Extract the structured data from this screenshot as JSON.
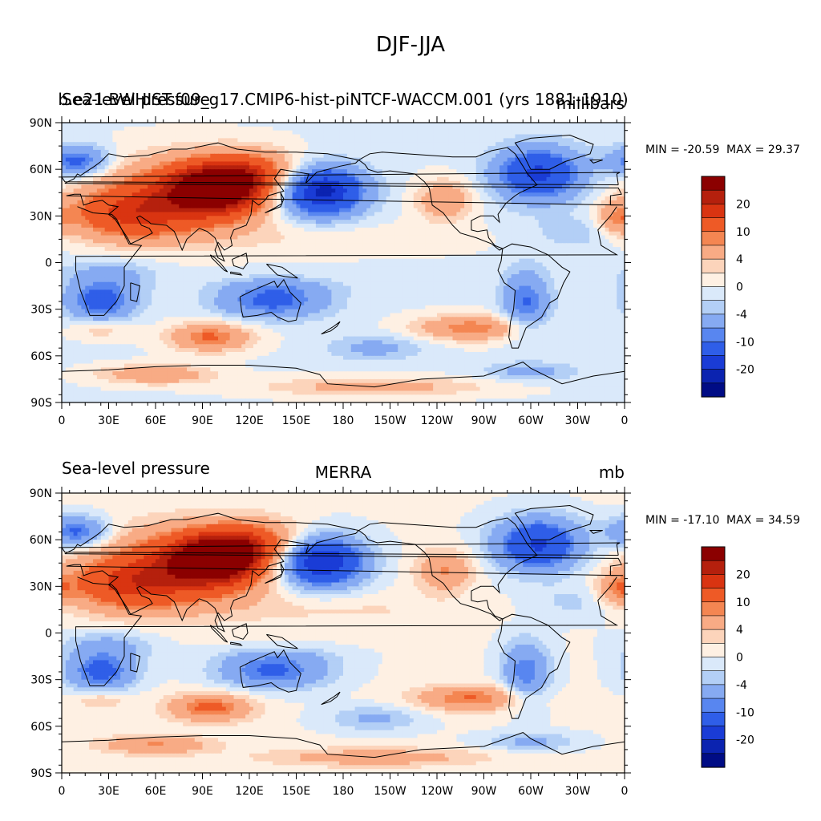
{
  "chart_data": {
    "type": "heatmap",
    "title": "DJF-JJA",
    "panels": [
      {
        "left_string": "Sea-level pressure",
        "center_string": "b.e21.BWHIST.f09_g17.CMIP6-hist-piNTCF-WACCM.001 (yrs 1881-1910)",
        "right_string": "millibars",
        "min_label": "MIN = -20.59",
        "max_label": "MAX =  29.37",
        "min": -20.59,
        "max": 29.37,
        "model_offset": -1
      },
      {
        "left_string": "Sea-level pressure",
        "center_string": "MERRA",
        "right_string": "mb",
        "min_label": "MIN = -17.10",
        "max_label": "MAX =  34.59",
        "min": -17.1,
        "max": 34.59,
        "model_offset": 1
      }
    ],
    "x_ticks": [
      "0",
      "30E",
      "60E",
      "90E",
      "120E",
      "150E",
      "180",
      "150W",
      "120W",
      "90W",
      "60W",
      "30W",
      "0"
    ],
    "y_ticks": [
      "90N",
      "60N",
      "30N",
      "0",
      "30S",
      "60S",
      "90S"
    ],
    "xlim": [
      0,
      360
    ],
    "ylim": [
      -90,
      90
    ],
    "colorbar": {
      "levels": [
        -24,
        -20,
        -16,
        -10,
        -8,
        -4,
        -2,
        0,
        2,
        4,
        8,
        10,
        16,
        20,
        24
      ],
      "labels": [
        "20",
        "10",
        "4",
        "0",
        "-4",
        "-10",
        "-20"
      ],
      "colors": [
        "#8b0000",
        "#b5200d",
        "#d93411",
        "#ee5a26",
        "#f48652",
        "#f8ab85",
        "#fcd4bb",
        "#fef0e3",
        "#dae9fa",
        "#b3cff6",
        "#86aaf2",
        "#5886f0",
        "#2f5ee8",
        "#1a3cd6",
        "#0b23b0",
        "#000c85"
      ]
    },
    "features": [
      {
        "lon": 100,
        "lat": 48,
        "a": 30,
        "b": 16,
        "v": 24
      },
      {
        "lon": 75,
        "lat": 42,
        "a": 55,
        "b": 24,
        "v": 14
      },
      {
        "lon": 40,
        "lat": 30,
        "a": 38,
        "b": 16,
        "v": 11
      },
      {
        "lon": 125,
        "lat": 58,
        "a": 32,
        "b": 14,
        "v": 10
      },
      {
        "lon": 165,
        "lat": 46,
        "a": 28,
        "b": 16,
        "v": -23
      },
      {
        "lon": 305,
        "lat": 57,
        "a": 28,
        "b": 17,
        "v": -17
      },
      {
        "lon": 10,
        "lat": 65,
        "a": 20,
        "b": 10,
        "v": -12
      },
      {
        "lon": 245,
        "lat": 40,
        "a": 18,
        "b": 13,
        "v": 8
      },
      {
        "lon": 355,
        "lat": 28,
        "a": 12,
        "b": 10,
        "v": 7
      },
      {
        "lon": 25,
        "lat": -25,
        "a": 22,
        "b": 12,
        "v": -12
      },
      {
        "lon": 135,
        "lat": -25,
        "a": 35,
        "b": 11,
        "v": -11
      },
      {
        "lon": 297,
        "lat": -25,
        "a": 15,
        "b": 20,
        "v": -10
      },
      {
        "lon": 262,
        "lat": -42,
        "a": 35,
        "b": 8,
        "v": 10
      },
      {
        "lon": 95,
        "lat": -48,
        "a": 26,
        "b": 9,
        "v": 11
      },
      {
        "lon": 25,
        "lat": -43,
        "a": 18,
        "b": 6,
        "v": 4
      },
      {
        "lon": 30,
        "lat": -8,
        "a": 30,
        "b": 10,
        "v": -5
      },
      {
        "lon": 200,
        "lat": -55,
        "a": 30,
        "b": 8,
        "v": -5
      },
      {
        "lon": 140,
        "lat": -15,
        "a": 40,
        "b": 6,
        "v": -3
      },
      {
        "lon": 180,
        "lat": 15,
        "a": 80,
        "b": 10,
        "v": 2
      },
      {
        "lon": 330,
        "lat": 20,
        "a": 30,
        "b": 12,
        "v": -3
      },
      {
        "lon": 60,
        "lat": -72,
        "a": 35,
        "b": 6,
        "v": 8
      },
      {
        "lon": 200,
        "lat": -80,
        "a": 70,
        "b": 6,
        "v": 6
      },
      {
        "lon": 300,
        "lat": -70,
        "a": 30,
        "b": 6,
        "v": -5
      }
    ]
  }
}
